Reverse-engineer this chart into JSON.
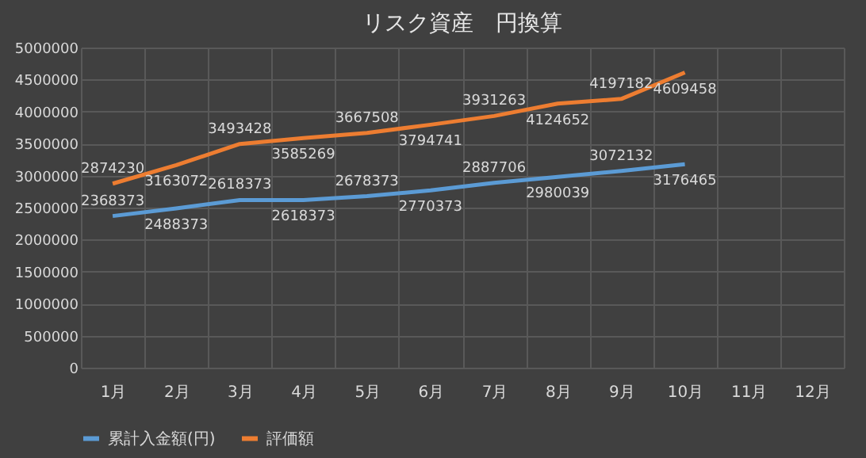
{
  "chart_data": {
    "type": "line",
    "title": "リスク資産　円換算",
    "categories": [
      "1月",
      "2月",
      "3月",
      "4月",
      "5月",
      "6月",
      "7月",
      "8月",
      "9月",
      "10月",
      "11月",
      "12月"
    ],
    "series": [
      {
        "name": "累計入金額(円)",
        "color": "#5b9bd5",
        "values": [
          2368373,
          2488373,
          2618373,
          2618373,
          2678373,
          2770373,
          2887706,
          2980039,
          3072132,
          3176465,
          null,
          null
        ]
      },
      {
        "name": "評価額",
        "color": "#ed7d31",
        "values": [
          2874230,
          3163072,
          3493428,
          3585269,
          3667508,
          3794741,
          3931263,
          4124652,
          4197182,
          4609458,
          null,
          null
        ]
      }
    ],
    "ylim": [
      0,
      5000000
    ],
    "yticks": [
      0,
      500000,
      1000000,
      1500000,
      2000000,
      2500000,
      3000000,
      3500000,
      4000000,
      4500000,
      5000000
    ],
    "grid": true,
    "legend": "bottom",
    "data_labels": true
  }
}
